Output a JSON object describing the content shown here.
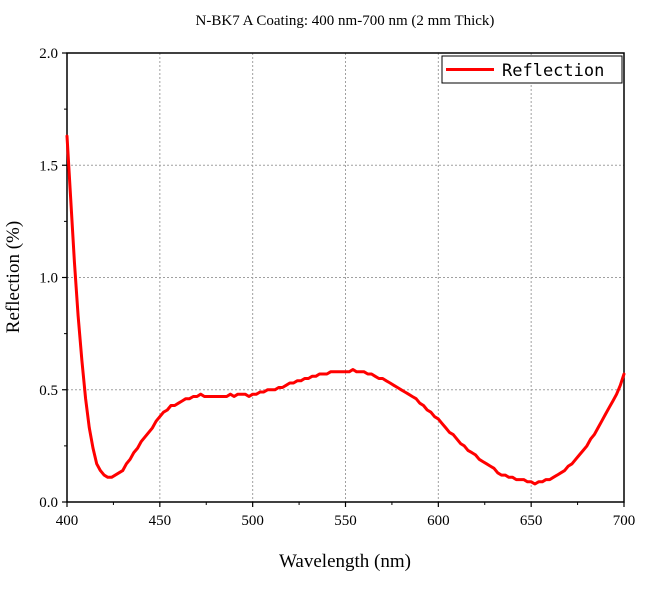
{
  "chart_data": {
    "type": "line",
    "title": "N-BK7 A Coating: 400 nm-700 nm (2 mm Thick)",
    "xlabel": "Wavelength (nm)",
    "ylabel": "Reflection (%)",
    "xlim": [
      400,
      700
    ],
    "ylim": [
      0.0,
      2.0
    ],
    "x_ticks": [
      "400",
      "450",
      "500",
      "550",
      "600",
      "650",
      "700"
    ],
    "y_ticks": [
      "0.0",
      "0.5",
      "1.0",
      "1.5",
      "2.0"
    ],
    "grid": true,
    "legend_position": "top-right",
    "series": [
      {
        "name": "Reflection",
        "color": "#ff0000",
        "x": [
          400,
          402,
          404,
          406,
          408,
          410,
          412,
          414,
          416,
          418,
          420,
          422,
          424,
          426,
          428,
          430,
          432,
          434,
          436,
          438,
          440,
          442,
          444,
          446,
          448,
          450,
          452,
          454,
          456,
          458,
          460,
          462,
          464,
          466,
          468,
          470,
          472,
          474,
          476,
          478,
          480,
          482,
          484,
          486,
          488,
          490,
          492,
          494,
          496,
          498,
          500,
          502,
          504,
          506,
          508,
          510,
          512,
          514,
          516,
          518,
          520,
          522,
          524,
          526,
          528,
          530,
          532,
          534,
          536,
          538,
          540,
          542,
          544,
          546,
          548,
          550,
          552,
          554,
          556,
          558,
          560,
          562,
          564,
          566,
          568,
          570,
          572,
          574,
          576,
          578,
          580,
          582,
          584,
          586,
          588,
          590,
          592,
          594,
          596,
          598,
          600,
          602,
          604,
          606,
          608,
          610,
          612,
          614,
          616,
          618,
          620,
          622,
          624,
          626,
          628,
          630,
          632,
          634,
          636,
          638,
          640,
          642,
          644,
          646,
          648,
          650,
          652,
          654,
          656,
          658,
          660,
          662,
          664,
          666,
          668,
          670,
          672,
          674,
          676,
          678,
          680,
          682,
          684,
          686,
          688,
          690,
          692,
          694,
          696,
          698,
          700
        ],
        "values": [
          1.63,
          1.35,
          1.07,
          0.83,
          0.63,
          0.46,
          0.33,
          0.24,
          0.17,
          0.14,
          0.12,
          0.11,
          0.11,
          0.12,
          0.13,
          0.14,
          0.17,
          0.19,
          0.22,
          0.24,
          0.27,
          0.29,
          0.31,
          0.33,
          0.36,
          0.38,
          0.4,
          0.41,
          0.43,
          0.43,
          0.44,
          0.45,
          0.46,
          0.46,
          0.47,
          0.47,
          0.48,
          0.47,
          0.47,
          0.47,
          0.47,
          0.47,
          0.47,
          0.47,
          0.48,
          0.47,
          0.48,
          0.48,
          0.48,
          0.47,
          0.48,
          0.48,
          0.49,
          0.49,
          0.5,
          0.5,
          0.5,
          0.51,
          0.51,
          0.52,
          0.53,
          0.53,
          0.54,
          0.54,
          0.55,
          0.55,
          0.56,
          0.56,
          0.57,
          0.57,
          0.57,
          0.58,
          0.58,
          0.58,
          0.58,
          0.58,
          0.58,
          0.59,
          0.58,
          0.58,
          0.58,
          0.57,
          0.57,
          0.56,
          0.55,
          0.55,
          0.54,
          0.53,
          0.52,
          0.51,
          0.5,
          0.49,
          0.48,
          0.47,
          0.46,
          0.44,
          0.43,
          0.41,
          0.4,
          0.38,
          0.37,
          0.35,
          0.33,
          0.31,
          0.3,
          0.28,
          0.26,
          0.25,
          0.23,
          0.22,
          0.21,
          0.19,
          0.18,
          0.17,
          0.16,
          0.15,
          0.13,
          0.12,
          0.12,
          0.11,
          0.11,
          0.1,
          0.1,
          0.1,
          0.09,
          0.09,
          0.08,
          0.09,
          0.09,
          0.1,
          0.1,
          0.11,
          0.12,
          0.13,
          0.14,
          0.16,
          0.17,
          0.19,
          0.21,
          0.23,
          0.25,
          0.28,
          0.3,
          0.33,
          0.36,
          0.39,
          0.42,
          0.45,
          0.48,
          0.52,
          0.57
        ]
      }
    ]
  }
}
